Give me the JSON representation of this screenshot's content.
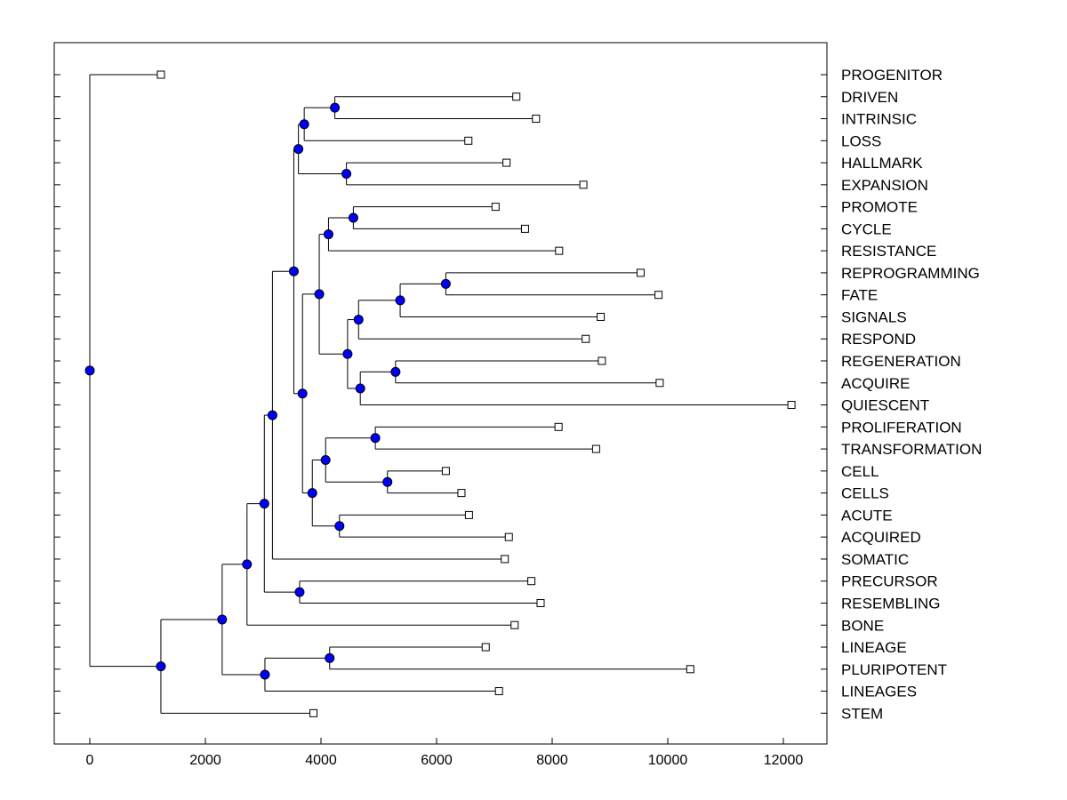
{
  "chart_data": {
    "type": "dendrogram",
    "title": "",
    "xlabel": "",
    "ylabel": "",
    "xlim": [
      -600,
      12700
    ],
    "x_ticks": [
      0,
      2000,
      4000,
      6000,
      8000,
      10000,
      12000
    ],
    "x_tick_labels": [
      "0",
      "2000",
      "4000",
      "6000",
      "8000",
      "10000",
      "12000"
    ],
    "leaves": [
      {
        "label": "PROGENITOR",
        "x": 1230
      },
      {
        "label": "DRIVEN",
        "x": 7380
      },
      {
        "label": "INTRINSIC",
        "x": 7720
      },
      {
        "label": "LOSS",
        "x": 6550
      },
      {
        "label": "HALLMARK",
        "x": 7210
      },
      {
        "label": "EXPANSION",
        "x": 8540
      },
      {
        "label": "PROMOTE",
        "x": 7020
      },
      {
        "label": "CYCLE",
        "x": 7530
      },
      {
        "label": "RESISTANCE",
        "x": 8120
      },
      {
        "label": "REPROGRAMMING",
        "x": 9530
      },
      {
        "label": "FATE",
        "x": 9840
      },
      {
        "label": "SIGNALS",
        "x": 8840
      },
      {
        "label": "RESPOND",
        "x": 8580
      },
      {
        "label": "REGENERATION",
        "x": 8860
      },
      {
        "label": "ACQUIRE",
        "x": 9860
      },
      {
        "label": "QUIESCENT",
        "x": 12140
      },
      {
        "label": "PROLIFERATION",
        "x": 8110
      },
      {
        "label": "TRANSFORMATION",
        "x": 8760
      },
      {
        "label": "CELL",
        "x": 6160
      },
      {
        "label": "CELLS",
        "x": 6430
      },
      {
        "label": "ACUTE",
        "x": 6560
      },
      {
        "label": "ACQUIRED",
        "x": 7250
      },
      {
        "label": "SOMATIC",
        "x": 7180
      },
      {
        "label": "PRECURSOR",
        "x": 7640
      },
      {
        "label": "RESEMBLING",
        "x": 7800
      },
      {
        "label": "BONE",
        "x": 7350
      },
      {
        "label": "LINEAGE",
        "x": 6850
      },
      {
        "label": "PLURIPOTENT",
        "x": 10390
      },
      {
        "label": "LINEAGES",
        "x": 7080
      },
      {
        "label": "STEM",
        "x": 3870
      }
    ],
    "merges": [
      {
        "id": "m1",
        "children": [
          "DRIVEN",
          "INTRINSIC"
        ],
        "x": 4240
      },
      {
        "id": "m2",
        "children": [
          "m1",
          "LOSS"
        ],
        "x": 3710
      },
      {
        "id": "m3",
        "children": [
          "HALLMARK",
          "EXPANSION"
        ],
        "x": 4440
      },
      {
        "id": "m4",
        "children": [
          "m2",
          "m3"
        ],
        "x": 3610
      },
      {
        "id": "m5",
        "children": [
          "PROMOTE",
          "CYCLE"
        ],
        "x": 4560
      },
      {
        "id": "m6",
        "children": [
          "m5",
          "RESISTANCE"
        ],
        "x": 4130
      },
      {
        "id": "m7",
        "children": [
          "REPROGRAMMING",
          "FATE"
        ],
        "x": 6160
      },
      {
        "id": "m8",
        "children": [
          "m7",
          "SIGNALS"
        ],
        "x": 5370
      },
      {
        "id": "m9",
        "children": [
          "m8",
          "RESPOND"
        ],
        "x": 4650
      },
      {
        "id": "m10",
        "children": [
          "REGENERATION",
          "ACQUIRE"
        ],
        "x": 5290
      },
      {
        "id": "m11",
        "children": [
          "m10",
          "QUIESCENT"
        ],
        "x": 4680
      },
      {
        "id": "m12",
        "children": [
          "m9",
          "m11"
        ],
        "x": 4460
      },
      {
        "id": "m13",
        "children": [
          "m6",
          "m12"
        ],
        "x": 3970
      },
      {
        "id": "m14",
        "children": [
          "PROLIFERATION",
          "TRANSFORMATION"
        ],
        "x": 4940
      },
      {
        "id": "m15",
        "children": [
          "CELL",
          "CELLS"
        ],
        "x": 5150
      },
      {
        "id": "m16",
        "children": [
          "m14",
          "m15"
        ],
        "x": 4080
      },
      {
        "id": "m17",
        "children": [
          "ACUTE",
          "ACQUIRED"
        ],
        "x": 4320
      },
      {
        "id": "m18",
        "children": [
          "m16",
          "m17"
        ],
        "x": 3850
      },
      {
        "id": "m19",
        "children": [
          "m13",
          "m18"
        ],
        "x": 3680
      },
      {
        "id": "m20",
        "children": [
          "m4",
          "m19"
        ],
        "x": 3530
      },
      {
        "id": "m21",
        "children": [
          "m20",
          "SOMATIC"
        ],
        "x": 3160
      },
      {
        "id": "m22",
        "children": [
          "PRECURSOR",
          "RESEMBLING"
        ],
        "x": 3630
      },
      {
        "id": "m23",
        "children": [
          "m21",
          "m22"
        ],
        "x": 3020
      },
      {
        "id": "m24",
        "children": [
          "m23",
          "BONE"
        ],
        "x": 2720
      },
      {
        "id": "m25",
        "children": [
          "LINEAGE",
          "PLURIPOTENT"
        ],
        "x": 4150
      },
      {
        "id": "m26",
        "children": [
          "m25",
          "LINEAGES"
        ],
        "x": 3030
      },
      {
        "id": "m27",
        "children": [
          "m24",
          "m26"
        ],
        "x": 2290
      },
      {
        "id": "m28",
        "children": [
          "m27",
          "STEM"
        ],
        "x": 1230
      },
      {
        "id": "m29",
        "children": [
          "PROGENITOR",
          "m28"
        ],
        "x": 0
      }
    ]
  }
}
